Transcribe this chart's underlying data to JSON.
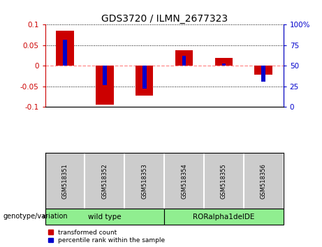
{
  "title": "GDS3720 / ILMN_2677323",
  "samples": [
    "GSM518351",
    "GSM518352",
    "GSM518353",
    "GSM518354",
    "GSM518355",
    "GSM518356"
  ],
  "red_values": [
    0.085,
    -0.095,
    -0.073,
    0.038,
    0.02,
    -0.022
  ],
  "blue_values_mapped": [
    0.063,
    -0.047,
    -0.056,
    0.025,
    0.005,
    -0.038
  ],
  "ylim": [
    -0.1,
    0.1
  ],
  "yticks_left": [
    -0.1,
    -0.05,
    0.0,
    0.05,
    0.1
  ],
  "yticks_left_labels": [
    "-0.1",
    "-0.05",
    "0",
    "0.05",
    "0.1"
  ],
  "yticks_right_pos": [
    -0.1,
    -0.05,
    0.0,
    0.05,
    0.1
  ],
  "yticks_right_labels": [
    "0",
    "25",
    "50",
    "75",
    "100%"
  ],
  "groups": [
    {
      "label": "wild type",
      "start": 0,
      "end": 2,
      "color": "#90EE90"
    },
    {
      "label": "RORalpha1delDE",
      "start": 3,
      "end": 5,
      "color": "#90EE90"
    }
  ],
  "group_label": "genotype/variation",
  "legend_red": "transformed count",
  "legend_blue": "percentile rank within the sample",
  "red_bar_width": 0.45,
  "blue_bar_width": 0.1,
  "red_color": "#CC0000",
  "blue_color": "#0000CC",
  "zero_line_color": "#FF8888",
  "dotted_color": "#000000",
  "bg_color": "#FFFFFF",
  "plot_bg": "#FFFFFF",
  "left_tick_color": "#CC0000",
  "right_tick_color": "#0000CC",
  "label_bg": "#CCCCCC",
  "label_border": "#888888"
}
